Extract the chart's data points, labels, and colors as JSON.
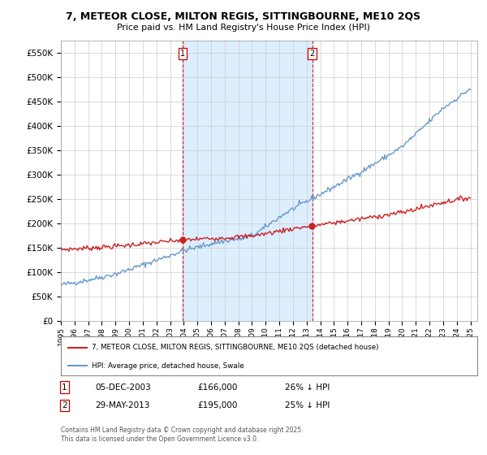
{
  "title": "7, METEOR CLOSE, MILTON REGIS, SITTINGBOURNE, ME10 2QS",
  "subtitle": "Price paid vs. HM Land Registry's House Price Index (HPI)",
  "ylabel_ticks": [
    "£0",
    "£50K",
    "£100K",
    "£150K",
    "£200K",
    "£250K",
    "£300K",
    "£350K",
    "£400K",
    "£450K",
    "£500K",
    "£550K"
  ],
  "ytick_values": [
    0,
    50000,
    100000,
    150000,
    200000,
    250000,
    300000,
    350000,
    400000,
    450000,
    500000,
    550000
  ],
  "ylim": [
    0,
    575000
  ],
  "x_start_year": 1995,
  "x_end_year": 2025,
  "hpi_color": "#6699cc",
  "price_color": "#cc2222",
  "shade_color": "#ddeeff",
  "marker1_year": 2003.92,
  "marker2_year": 2013.41,
  "marker1_label": "1",
  "marker2_label": "2",
  "legend_line1": "7, METEOR CLOSE, MILTON REGIS, SITTINGBOURNE, ME10 2QS (detached house)",
  "legend_line2": "HPI: Average price, detached house, Swale",
  "table_row1": [
    "1",
    "05-DEC-2003",
    "£166,000",
    "26% ↓ HPI"
  ],
  "table_row2": [
    "2",
    "29-MAY-2013",
    "£195,000",
    "25% ↓ HPI"
  ],
  "footnote": "Contains HM Land Registry data © Crown copyright and database right 2025.\nThis data is licensed under the Open Government Licence v3.0.",
  "background_color": "#ffffff",
  "plot_bg_color": "#ffffff",
  "grid_color": "#cccccc"
}
